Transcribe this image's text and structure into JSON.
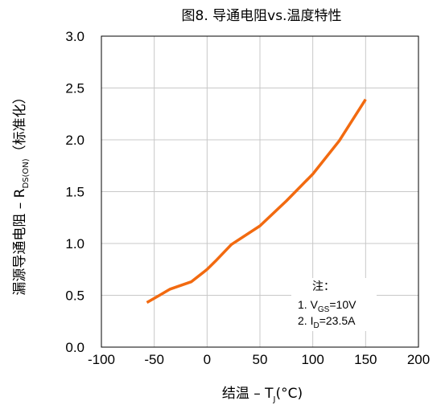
{
  "chart_data": {
    "type": "line",
    "title": "图8. 导通电阻vs.温度特性",
    "xlabel": {
      "main": "结温  –  T",
      "sub": "J",
      "after": "(°C)"
    },
    "ylabel": {
      "main": "漏源导通电阻  –  R",
      "sub": "DS(ON)",
      "after": "（标准化）"
    },
    "xlim": [
      -100,
      200
    ],
    "ylim": [
      0.0,
      3.0
    ],
    "xticks": [
      "-100",
      "-50",
      "0",
      "50",
      "100",
      "150",
      "200"
    ],
    "yticks": [
      "0.0",
      "0.5",
      "1.0",
      "1.5",
      "2.0",
      "2.5",
      "3.0"
    ],
    "grid": true,
    "series": [
      {
        "color": "#F26A10",
        "x": [
          -57,
          -45,
          -35,
          -15,
          0,
          8,
          23,
          50,
          75,
          100,
          125,
          150
        ],
        "y": [
          0.43,
          0.5,
          0.56,
          0.63,
          0.75,
          0.83,
          0.99,
          1.17,
          1.41,
          1.67,
          1.99,
          2.39
        ]
      }
    ],
    "annotation": {
      "header": "注：",
      "line1": {
        "prefix": "1. V",
        "sub": "GS",
        "suffix": "=10V"
      },
      "line2": {
        "prefix": "2. I",
        "sub": "D",
        "suffix": "=23.5A"
      }
    }
  }
}
